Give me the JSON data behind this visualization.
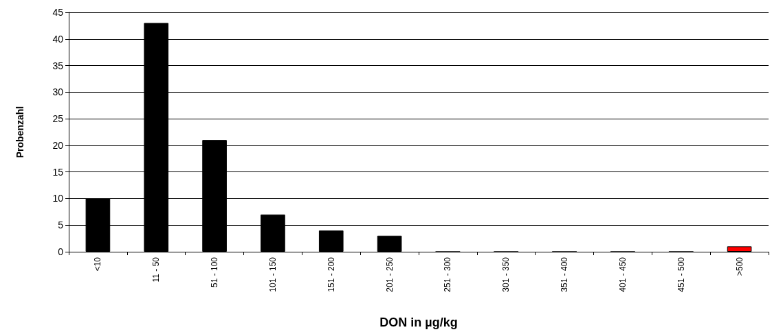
{
  "chart_data": {
    "type": "bar",
    "xlabel": "DON in µg/kg",
    "ylabel": "Probenzahl",
    "categories": [
      "<10",
      "11 - 50",
      "51 - 100",
      "101 - 150",
      "151 - 200",
      "201 - 250",
      "251 - 300",
      "301 - 350",
      "351 - 400",
      "401 - 450",
      "451 - 500",
      ">500"
    ],
    "values": [
      10,
      43,
      21,
      7,
      4,
      3,
      0,
      0,
      0,
      0,
      0,
      1
    ],
    "colors": [
      "#000000",
      "#000000",
      "#000000",
      "#000000",
      "#000000",
      "#000000",
      "#000000",
      "#000000",
      "#000000",
      "#000000",
      "#000000",
      "#ff0000"
    ],
    "ylim": [
      0,
      45
    ],
    "yticks": [
      0,
      5,
      10,
      15,
      20,
      25,
      30,
      35,
      40,
      45
    ],
    "grid": "y"
  }
}
